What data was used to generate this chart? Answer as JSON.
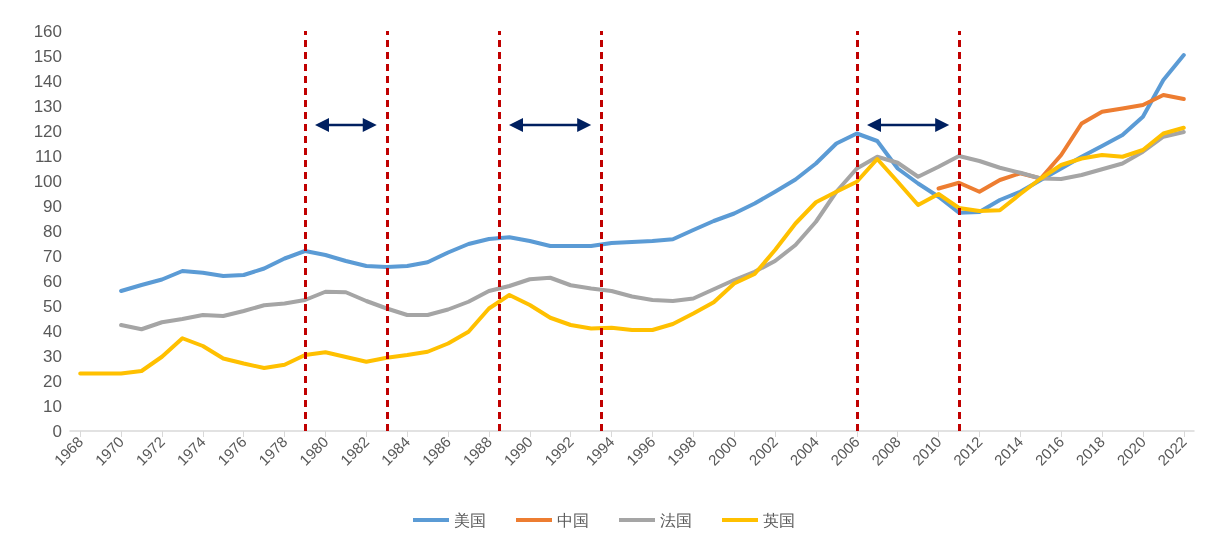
{
  "chart_data": {
    "type": "line",
    "x": [
      1968,
      1969,
      1970,
      1971,
      1972,
      1973,
      1974,
      1975,
      1976,
      1977,
      1978,
      1979,
      1980,
      1981,
      1982,
      1983,
      1984,
      1985,
      1986,
      1987,
      1988,
      1989,
      1990,
      1991,
      1992,
      1993,
      1994,
      1995,
      1996,
      1997,
      1998,
      1999,
      2000,
      2001,
      2002,
      2003,
      2004,
      2005,
      2006,
      2007,
      2008,
      2009,
      2010,
      2011,
      2012,
      2013,
      2014,
      2015,
      2016,
      2017,
      2018,
      2019,
      2020,
      2021,
      2022
    ],
    "series": [
      {
        "name": "美国",
        "color": "#5b9bd5",
        "values": [
          null,
          null,
          56,
          58.4,
          60.6,
          64,
          63.3,
          62,
          62.4,
          65,
          69,
          72,
          70.4,
          68,
          66,
          65.6,
          66,
          67.5,
          71.4,
          74.8,
          76.8,
          77.5,
          76,
          74,
          74,
          74,
          75.2,
          75.6,
          76,
          76.7,
          80.4,
          84,
          87,
          91,
          95.7,
          100.6,
          107,
          115,
          119,
          116,
          105,
          99,
          93.7,
          87.3,
          87.6,
          92.4,
          95.7,
          100.4,
          105,
          109.7,
          114,
          118.4,
          125.7,
          140.4,
          150.4
        ]
      },
      {
        "name": "中国",
        "color": "#ed7d31",
        "values": [
          null,
          null,
          null,
          null,
          null,
          null,
          null,
          null,
          null,
          null,
          null,
          null,
          null,
          null,
          null,
          null,
          null,
          null,
          null,
          null,
          null,
          null,
          null,
          null,
          null,
          null,
          null,
          null,
          null,
          null,
          null,
          null,
          null,
          null,
          null,
          null,
          null,
          null,
          null,
          null,
          null,
          null,
          97,
          99.3,
          95.7,
          100.4,
          103.1,
          101,
          110.4,
          123,
          127.7,
          129,
          130.4,
          134.4,
          132.8
        ]
      },
      {
        "name": "法国",
        "color": "#a5a5a5",
        "values": [
          null,
          null,
          42.4,
          40.7,
          43.5,
          44.8,
          46.4,
          46,
          48,
          50.3,
          51,
          52.4,
          55.7,
          55.5,
          52,
          49,
          46.4,
          46.4,
          48.6,
          51.7,
          56,
          58,
          60.7,
          61.3,
          58.3,
          57,
          56,
          53.8,
          52.4,
          52,
          53,
          56.7,
          60.4,
          63.7,
          68,
          74.4,
          83.7,
          95.7,
          105,
          109.7,
          107.3,
          101.7,
          105.7,
          110,
          108,
          105.3,
          103.3,
          101,
          100.8,
          102.4,
          104.7,
          107,
          111.7,
          117.7,
          119.6
        ]
      },
      {
        "name": "英国",
        "color": "#ffc000",
        "values": [
          23,
          23,
          23,
          24,
          29.7,
          37.1,
          34,
          29,
          27,
          25.2,
          26.5,
          30.4,
          31.5,
          29.6,
          27.7,
          29.3,
          30.4,
          31.7,
          35,
          39.7,
          49,
          54.4,
          50.4,
          45.3,
          42.4,
          41,
          41.3,
          40.4,
          40.4,
          42.8,
          47,
          51.5,
          59,
          62.8,
          72.4,
          83,
          91.5,
          95.7,
          99.7,
          108.8,
          99.7,
          90.4,
          94.8,
          89.2,
          88,
          88.3,
          94.8,
          101,
          106.4,
          109,
          110.4,
          109.7,
          112.4,
          119,
          121.3
        ]
      }
    ],
    "xlim": [
      1967.5,
      2022.5
    ],
    "xticks": [
      1968,
      1970,
      1972,
      1974,
      1976,
      1978,
      1980,
      1982,
      1984,
      1986,
      1988,
      1990,
      1992,
      1994,
      1996,
      1998,
      2000,
      2002,
      2004,
      2006,
      2008,
      2010,
      2012,
      2014,
      2016,
      2018,
      2020,
      2022
    ],
    "ylim": [
      0,
      160
    ],
    "yticks": [
      0,
      10,
      20,
      30,
      40,
      50,
      60,
      70,
      80,
      90,
      100,
      110,
      120,
      130,
      140,
      150,
      160
    ],
    "ref_lines": [
      {
        "axis": "x",
        "value": 1979,
        "color": "#c00000",
        "line_style": "dashed"
      },
      {
        "axis": "x",
        "value": 1983,
        "color": "#c00000",
        "line_style": "dashed"
      },
      {
        "axis": "x",
        "value": 1988.5,
        "color": "#c00000",
        "line_style": "dashed"
      },
      {
        "axis": "x",
        "value": 1993.5,
        "color": "#c00000",
        "line_style": "dashed"
      },
      {
        "axis": "x",
        "value": 2006,
        "color": "#c00000",
        "line_style": "dashed"
      },
      {
        "axis": "x",
        "value": 2011,
        "color": "#c00000",
        "line_style": "dashed"
      }
    ],
    "grid": false,
    "legend": "bottom",
    "marker": "none",
    "line_style": "solid"
  }
}
